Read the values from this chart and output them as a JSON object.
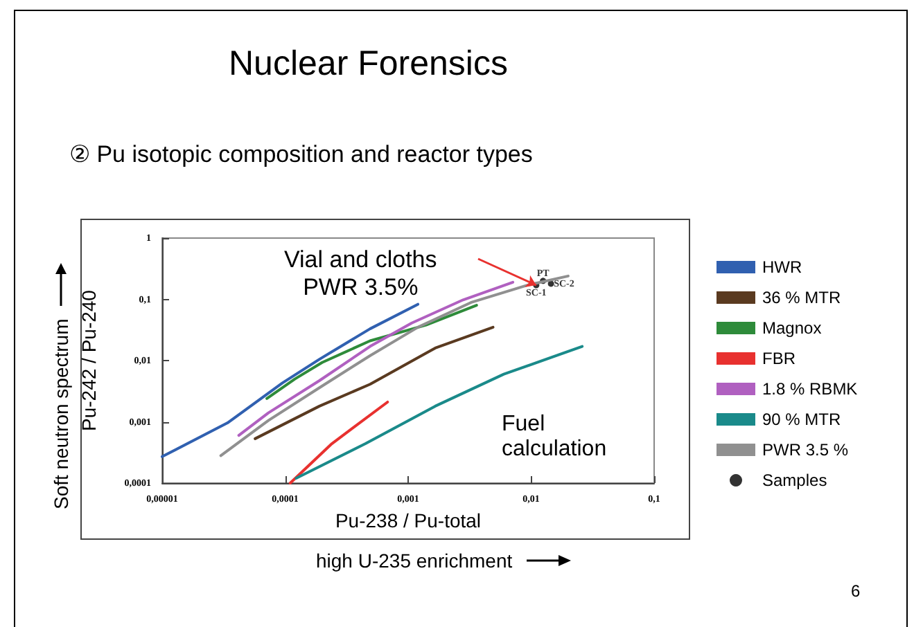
{
  "chart_data": {
    "type": "line",
    "title": "Nuclear Forensics",
    "subtitle": "② Pu isotopic composition and reactor types",
    "xlabel": "Pu-238 / Pu-total",
    "ylabel": "Pu-242 / Pu-240",
    "log": "xy",
    "grid": false,
    "legend": "right",
    "marker": "none",
    "line_style": "solid",
    "xlim": [
      1e-05,
      0.1
    ],
    "ylim": [
      0.0001,
      1
    ],
    "xticks": [
      {
        "value": 1e-05,
        "label": "0,00001"
      },
      {
        "value": 0.0001,
        "label": "0,0001"
      },
      {
        "value": 0.001,
        "label": "0,001"
      },
      {
        "value": 0.01,
        "label": "0,01"
      },
      {
        "value": 0.1,
        "label": "0,1"
      }
    ],
    "yticks": [
      {
        "value": 0.0001,
        "label": "0,0001"
      },
      {
        "value": 0.001,
        "label": "0,001"
      },
      {
        "value": 0.01,
        "label": "0,01"
      },
      {
        "value": 0.1,
        "label": "0,1"
      },
      {
        "value": 1,
        "label": "1"
      }
    ],
    "series": [
      {
        "name": "HWR",
        "color": "#3060b0",
        "x": [
          1e-05,
          3.4e-05,
          9.5e-05,
          0.00019,
          0.00049,
          0.0012
        ],
        "values": [
          0.00027,
          0.00096,
          0.0043,
          0.0105,
          0.033,
          0.083
        ]
      },
      {
        "name": "36 % MTR",
        "color": "#5a3a20",
        "x": [
          5.7e-05,
          0.00019,
          0.00049,
          0.00166,
          0.0049
        ],
        "values": [
          0.00053,
          0.0018,
          0.0041,
          0.016,
          0.035
        ]
      },
      {
        "name": "Magnox",
        "color": "#2e8b3a",
        "x": [
          7.1e-05,
          0.00012,
          0.0002,
          0.00049,
          0.0014,
          0.0036
        ],
        "values": [
          0.0024,
          0.005,
          0.0093,
          0.021,
          0.038,
          0.08
        ]
      },
      {
        "name": "FBR",
        "color": "#e8312f",
        "x": [
          0.00011,
          0.00024,
          0.00068
        ],
        "values": [
          0.0001,
          0.00044,
          0.0021
        ]
      },
      {
        "name": "1.8 % RBMK",
        "color": "#b060c0",
        "x": [
          4.2e-05,
          7.3e-05,
          0.00019,
          0.00049,
          0.00107,
          0.0028,
          0.0071
        ],
        "values": [
          0.0006,
          0.0014,
          0.0047,
          0.017,
          0.041,
          0.098,
          0.19
        ]
      },
      {
        "name": "90 % MTR",
        "color": "#1a8a8a",
        "x": [
          0.000123,
          0.00045,
          0.00166,
          0.006,
          0.026
        ],
        "values": [
          0.00012,
          0.00044,
          0.0018,
          0.006,
          0.017
        ]
      },
      {
        "name": "PWR 3.5 %",
        "color": "#909090",
        "x": [
          3e-05,
          7.3e-05,
          0.00019,
          0.00049,
          0.0012,
          0.0033,
          0.0093,
          0.02
        ],
        "values": [
          0.00028,
          0.00105,
          0.0036,
          0.012,
          0.035,
          0.09,
          0.17,
          0.24
        ]
      },
      {
        "name": "Samples",
        "type": "scatter",
        "marker": "circle",
        "color": "#000000",
        "x": [
          0.011,
          0.0125,
          0.0145
        ],
        "values": [
          0.17,
          0.2,
          0.18
        ]
      }
    ],
    "annotations": [
      {
        "text": "SC-1",
        "x": 0.011,
        "y": 0.17
      },
      {
        "text": "PT",
        "x": 0.0125,
        "y": 0.2
      },
      {
        "text": "SC-2",
        "x": 0.0145,
        "y": 0.18
      },
      "Vial and cloths\nPWR 3.5%",
      "Fuel\ncalculation",
      "Soft neutron spectrum",
      "high U-235 enrichment",
      "6"
    ]
  }
}
